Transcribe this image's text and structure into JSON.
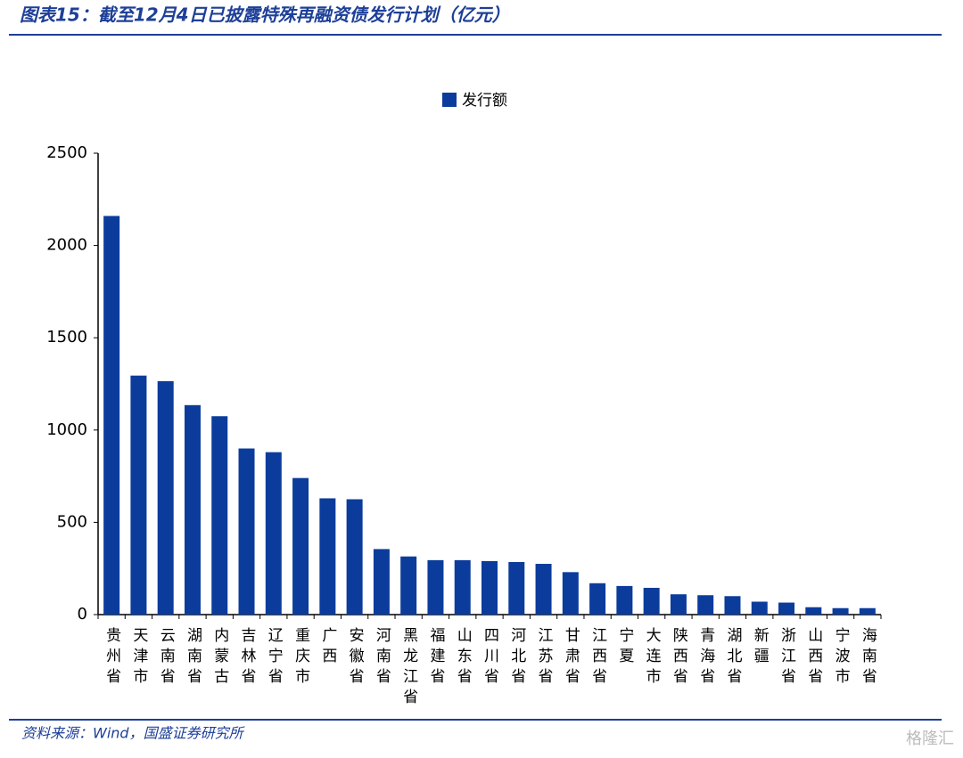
{
  "header": {
    "title": "图表15：截至12月4日已披露特殊再融资债发行计划（亿元）"
  },
  "chart_data": {
    "type": "bar",
    "categories": [
      "贵州省",
      "天津市",
      "云南省",
      "湖南省",
      "内蒙古",
      "吉林省",
      "辽宁省",
      "重庆市",
      "广西",
      "安徽省",
      "河南省",
      "黑龙江省",
      "福建省",
      "山东省",
      "四川省",
      "河北省",
      "江苏省",
      "甘肃省",
      "江西省",
      "宁夏",
      "大连市",
      "陕西省",
      "青海省",
      "湖北省",
      "新疆",
      "浙江省",
      "山西省",
      "宁波市",
      "海南省"
    ],
    "series": [
      {
        "name": "发行额",
        "color": "#0b3c9c",
        "values": [
          2160,
          1295,
          1265,
          1135,
          1075,
          900,
          880,
          740,
          630,
          625,
          355,
          315,
          295,
          295,
          290,
          285,
          275,
          230,
          170,
          155,
          145,
          110,
          105,
          100,
          70,
          65,
          40,
          35,
          35
        ]
      }
    ],
    "ylim": [
      0,
      2500
    ],
    "yticks": [
      0,
      500,
      1000,
      1500,
      2000,
      2500
    ],
    "grid": false,
    "legend": "top"
  },
  "footer": {
    "source": "资料来源：Wind，国盛证券研究所",
    "watermark": "格隆汇"
  }
}
